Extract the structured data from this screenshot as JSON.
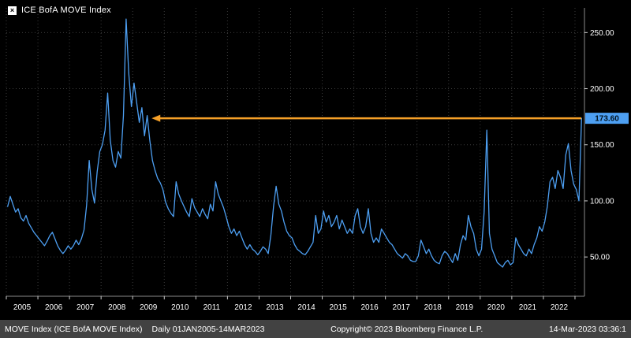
{
  "legend": {
    "label": "ICE BofA MOVE Index"
  },
  "colors": {
    "background": "#000000",
    "line": "#4d9ff2",
    "grid": "#3c3c3c",
    "axis_text": "#ffffff",
    "axis_line": "#8a8a8a",
    "annotation_orange": "#f6a028",
    "footer_bg": "#424242",
    "badge_text": "#00121f"
  },
  "chart_data": {
    "type": "line",
    "title": "ICE BofA MOVE Index",
    "series_name": "MOVE Index",
    "frequency": "Daily",
    "period": "01JAN2005-14MAR2023",
    "x_range": [
      2005.0,
      2023.3
    ],
    "y_axis_range": [
      15,
      272
    ],
    "x_start": 2005.0417,
    "x_step": 0.083333,
    "x_tick_years": [
      2005,
      2006,
      2007,
      2008,
      2009,
      2010,
      2011,
      2012,
      2013,
      2014,
      2015,
      2016,
      2017,
      2018,
      2019,
      2020,
      2021,
      2022,
      2023
    ],
    "x_labels": [
      "2005",
      "2006",
      "2007",
      "2008",
      "2009",
      "2010",
      "2011",
      "2012",
      "2013",
      "2014",
      "2015",
      "2016",
      "2017",
      "2018",
      "2019",
      "2020",
      "2021",
      "2022"
    ],
    "y_ticks": [
      50,
      100,
      150,
      200,
      250
    ],
    "y_tick_labels": [
      "50.00",
      "100.00",
      "150.00",
      "200.00",
      "250.00"
    ],
    "grid": true,
    "legend_position": "top-left",
    "values": [
      95,
      104,
      97,
      90,
      93,
      85,
      82,
      87,
      80,
      76,
      72,
      69,
      66,
      63,
      60,
      64,
      69,
      72,
      66,
      60,
      56,
      53,
      56,
      60,
      57,
      60,
      65,
      61,
      66,
      74,
      96,
      136,
      110,
      98,
      126,
      144,
      150,
      163,
      196,
      154,
      136,
      130,
      144,
      138,
      176,
      262,
      214,
      184,
      205,
      188,
      170,
      183,
      158,
      176,
      154,
      136,
      127,
      120,
      116,
      110,
      99,
      93,
      89,
      86,
      117,
      106,
      100,
      95,
      90,
      86,
      102,
      94,
      90,
      86,
      93,
      88,
      84,
      97,
      91,
      117,
      106,
      100,
      94,
      86,
      77,
      71,
      75,
      69,
      73,
      67,
      61,
      57,
      61,
      57,
      55,
      52,
      55,
      59,
      57,
      53,
      70,
      95,
      113,
      97,
      91,
      81,
      73,
      69,
      67,
      61,
      57,
      55,
      53,
      52,
      55,
      59,
      63,
      87,
      71,
      75,
      91,
      81,
      87,
      77,
      81,
      87,
      75,
      83,
      77,
      71,
      75,
      71,
      87,
      93,
      77,
      71,
      77,
      93,
      71,
      63,
      67,
      63,
      75,
      71,
      67,
      63,
      61,
      57,
      53,
      51,
      49,
      53,
      51,
      47,
      46,
      46,
      51,
      65,
      59,
      53,
      57,
      51,
      47,
      45,
      44,
      51,
      55,
      53,
      49,
      45,
      53,
      47,
      61,
      69,
      65,
      87,
      77,
      71,
      57,
      51,
      57,
      90,
      163,
      71,
      57,
      51,
      45,
      43,
      41,
      45,
      47,
      43,
      45,
      67,
      61,
      57,
      53,
      51,
      57,
      53,
      61,
      67,
      77,
      73,
      81,
      95,
      117,
      121,
      111,
      127,
      121,
      111,
      141,
      151,
      127,
      115,
      110,
      100,
      173.6
    ],
    "last_value": 173.6,
    "last_value_label": "173.60",
    "annotation": {
      "type": "arrow",
      "color": "#f6a028",
      "y_value": 173.6,
      "x_from_year": 2023.2,
      "x_to_year": 2009.6
    }
  },
  "footer": {
    "series": "MOVE Index (ICE BofA MOVE Index)",
    "range": "Daily 01JAN2005-14MAR2023",
    "copyright": "Copyright© 2023 Bloomberg Finance L.P.",
    "timestamp": "14-Mar-2023 03:36:1"
  }
}
